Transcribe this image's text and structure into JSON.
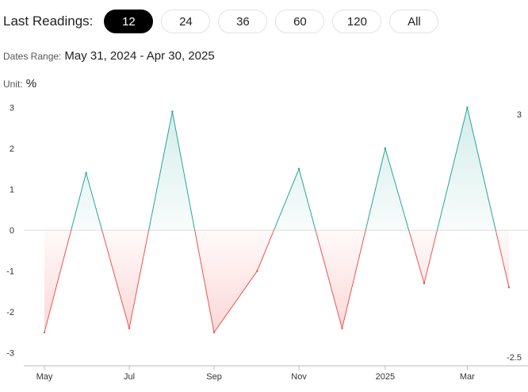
{
  "header": {
    "last_readings_label": "Last Readings:",
    "options": [
      {
        "label": "12",
        "active": true
      },
      {
        "label": "24",
        "active": false
      },
      {
        "label": "36",
        "active": false
      },
      {
        "label": "60",
        "active": false
      },
      {
        "label": "120",
        "active": false
      },
      {
        "label": "All",
        "active": false
      }
    ],
    "dates_range_label": "Dates Range:",
    "dates_range_value": "May 31, 2024 - Apr 30, 2025",
    "unit_label": "Unit:",
    "unit_value": "%"
  },
  "colors": {
    "positive": "#26a69a",
    "negative": "#ef5350",
    "zero_line": "#dddddd",
    "axis": "#bbbbbb"
  },
  "chart_data": {
    "type": "area",
    "x": [
      "2024-05-31",
      "2024-06-30",
      "2024-07-31",
      "2024-08-31",
      "2024-09-30",
      "2024-10-31",
      "2024-11-30",
      "2024-12-31",
      "2025-01-31",
      "2025-02-28",
      "2025-03-31",
      "2025-04-30"
    ],
    "values": [
      -2.5,
      1.4,
      -2.4,
      2.9,
      -2.5,
      -1.0,
      1.5,
      -2.4,
      2.0,
      -1.3,
      3.0,
      -1.4
    ],
    "baseline": 0,
    "ylim": [
      -3.2,
      3.3
    ],
    "y_ticks": [
      "3",
      "2",
      "1",
      "0",
      "-1",
      "-2",
      "-3"
    ],
    "x_tick_labels": [
      "May",
      "Jul",
      "Sep",
      "Nov",
      "2025",
      "Mar"
    ],
    "max_label": "3",
    "min_label": "-2.5",
    "grid": false,
    "legend": "none"
  }
}
